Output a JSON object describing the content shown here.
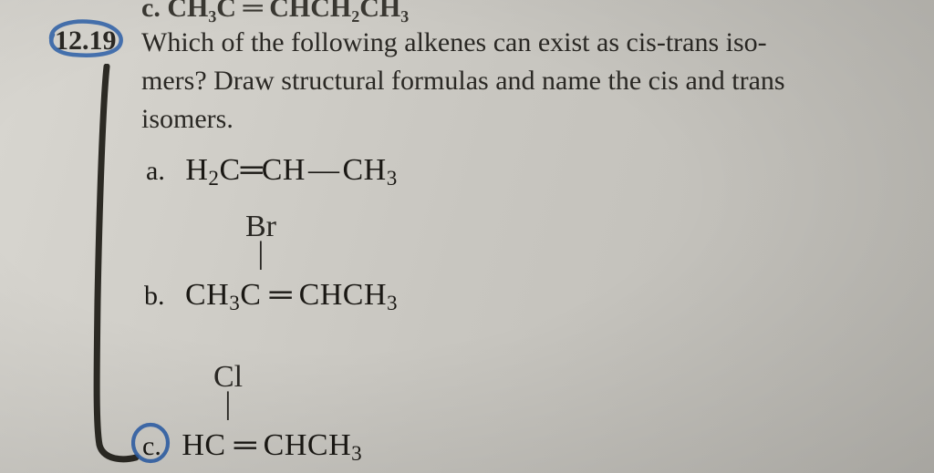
{
  "partial_top": "c.   CH₃C ═ CHCH₂CH₃",
  "problem_number": "12.19",
  "question_line1": "Which of the following alkenes can exist as cis-trans iso-",
  "question_line2": "mers? Draw structural formulas and name the cis and trans",
  "question_line3": "isomers.",
  "items": {
    "a": {
      "label": "a.",
      "formula_html": "H<sub>2</sub>C<span class='dbl'>═</span>CH<span class='sgl'>—</span>CH<sub>3</sub>"
    },
    "b": {
      "label": "b.",
      "substituent": "Br",
      "formula_html": "CH<sub>3</sub>C <span class='dbl'>═</span> CHCH<sub>3</sub>"
    },
    "c": {
      "label": "c.",
      "substituent": "Cl",
      "formula_html": "HC <span class='dbl'>═</span> CHCH<sub>3</sub>"
    }
  },
  "colors": {
    "pen_blue": "#2b5fa8",
    "pen_black": "#1a1712",
    "text": "#2a2824"
  }
}
